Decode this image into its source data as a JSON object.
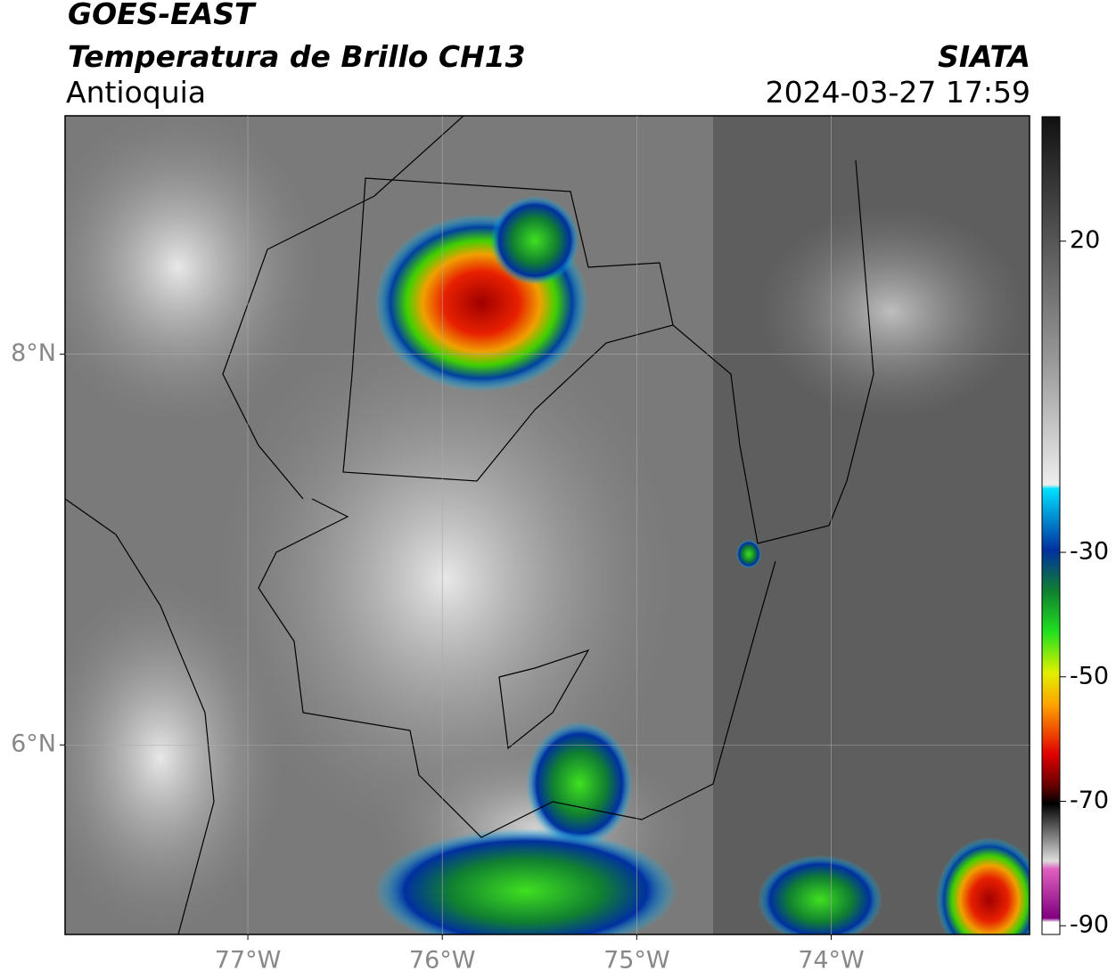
{
  "header": {
    "satellite": "GOES-EAST",
    "product": "Temperatura de Brillo CH13",
    "region": "Antioquia",
    "agency": "SIATA",
    "datetime": "2024-03-27 17:59"
  },
  "map": {
    "xlim": [
      -77.94,
      -72.98
    ],
    "ylim": [
      5.03,
      9.22
    ],
    "xticks": [
      {
        "value": -77,
        "label": "77°W"
      },
      {
        "value": -76,
        "label": "76°W"
      },
      {
        "value": -75,
        "label": "75°W"
      },
      {
        "value": -74,
        "label": "74°W"
      }
    ],
    "yticks": [
      {
        "value": 8,
        "label": "8°N"
      },
      {
        "value": 6,
        "label": "6°N"
      }
    ]
  },
  "colorbar": {
    "lim": [
      -91.4,
      40
    ],
    "ticks": [
      20,
      -30,
      -50,
      -70,
      -90
    ]
  }
}
